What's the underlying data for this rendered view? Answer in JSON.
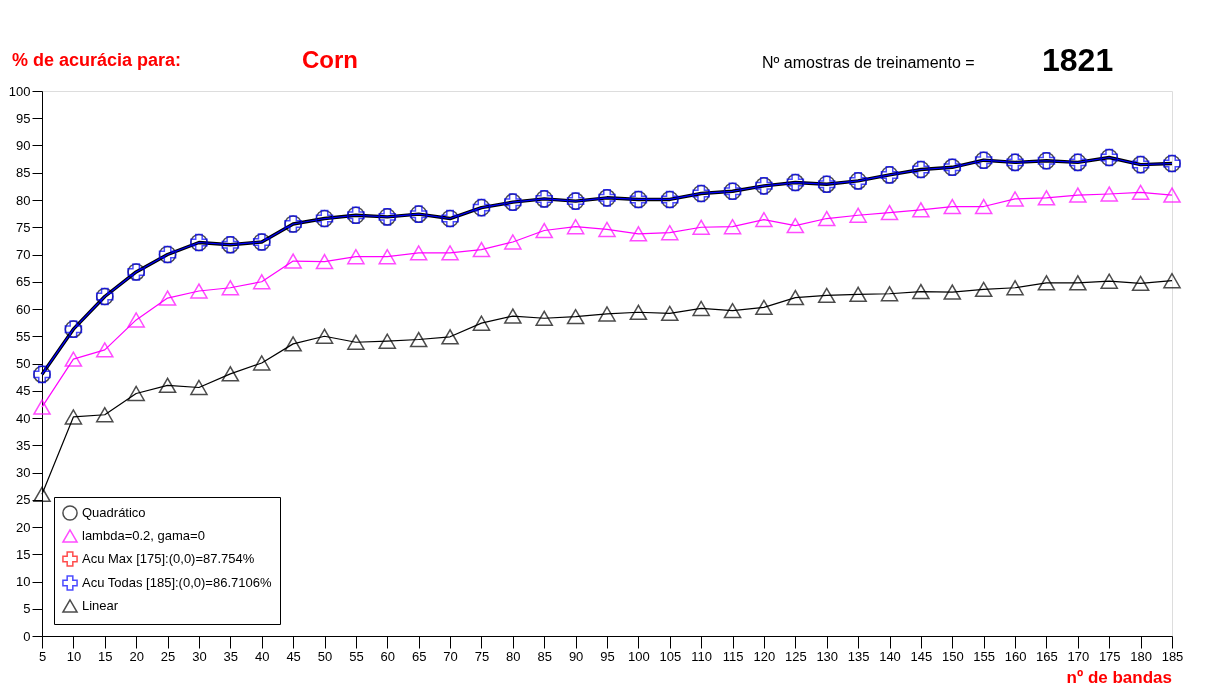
{
  "chart_data": {
    "type": "line",
    "title": "% de acurácia para:",
    "xlabel": "nº de bandas",
    "annotations": [
      "Corn",
      "Nº amostras de treinamento =",
      "1821"
    ],
    "categories": [
      "5",
      "10",
      "15",
      "20",
      "25",
      "30",
      "35",
      "40",
      "45",
      "50",
      "55",
      "60",
      "65",
      "70",
      "75",
      "80",
      "85",
      "90",
      "95",
      "100",
      "105",
      "110",
      "115",
      "120",
      "125",
      "130",
      "135",
      "140",
      "145",
      "150",
      "155",
      "160",
      "165",
      "170",
      "175",
      "180",
      "185"
    ],
    "ylim": [
      0,
      100
    ],
    "yticks": [
      0,
      5,
      10,
      15,
      20,
      25,
      30,
      35,
      40,
      45,
      50,
      55,
      60,
      65,
      70,
      75,
      80,
      85,
      90,
      95,
      100
    ],
    "grid": false,
    "legend": "bottom left",
    "line_style": "solid",
    "series": [
      {
        "name": "Quadrático",
        "color": "#000000",
        "marker": "circle",
        "values": [
          48,
          56.3,
          62.3,
          66.8,
          70,
          72.2,
          71.8,
          72.3,
          75.6,
          76.6,
          77.2,
          76.9,
          77.4,
          76.6,
          78.6,
          79.6,
          80.2,
          79.8,
          80.4,
          80.1,
          80.1,
          81.2,
          81.6,
          82.6,
          83.2,
          82.9,
          83.5,
          84.6,
          85.6,
          86,
          87.3,
          86.9,
          87.2,
          86.9,
          87.8,
          86.5,
          86.7
        ]
      },
      {
        "name": "lambda=0.2, gama=0",
        "color": "#ff00ff",
        "marker": "triangle",
        "values": [
          42,
          50.8,
          52.5,
          58,
          62,
          63.3,
          63.9,
          65,
          68.8,
          68.7,
          69.6,
          69.6,
          70.3,
          70.3,
          70.9,
          72.3,
          74.4,
          75.1,
          74.6,
          73.8,
          74,
          75,
          75.1,
          76.4,
          75.3,
          76.6,
          77.2,
          77.7,
          78.2,
          78.8,
          78.8,
          80.2,
          80.4,
          80.9,
          81.1,
          81.4,
          80.9
        ]
      },
      {
        "name": "Acu Max [175]:(0,0)=87.754%",
        "color": "#ff0000",
        "marker": "cross",
        "values": [
          null,
          null,
          null,
          null,
          null,
          null,
          null,
          null,
          null,
          null,
          null,
          null,
          null,
          null,
          null,
          null,
          null,
          null,
          null,
          null,
          null,
          null,
          null,
          null,
          null,
          null,
          null,
          null,
          null,
          null,
          null,
          null,
          null,
          null,
          null,
          null,
          null
        ]
      },
      {
        "name": "Acu Todas [185]:(0,0)=86.7106%",
        "color": "#0000ff",
        "marker": "cross",
        "values": [
          48,
          56.3,
          62.3,
          66.8,
          70,
          72.2,
          71.8,
          72.3,
          75.6,
          76.6,
          77.2,
          76.9,
          77.4,
          76.6,
          78.6,
          79.6,
          80.2,
          79.8,
          80.4,
          80.1,
          80.1,
          81.2,
          81.6,
          82.6,
          83.2,
          82.9,
          83.5,
          84.6,
          85.6,
          86,
          87.3,
          86.9,
          87.2,
          86.9,
          87.8,
          86.5,
          86.7
        ]
      },
      {
        "name": "Linear",
        "color": "#000000",
        "marker": "triangle",
        "values": [
          26,
          40.2,
          40.6,
          44.5,
          46,
          45.6,
          48.1,
          50.1,
          53.6,
          55,
          53.9,
          54.1,
          54.4,
          54.9,
          57.4,
          58.7,
          58.3,
          58.6,
          59.1,
          59.4,
          59.2,
          60.1,
          59.7,
          60.3,
          62.1,
          62.5,
          62.7,
          62.8,
          63.2,
          63.1,
          63.6,
          63.9,
          64.8,
          64.8,
          65.1,
          64.7,
          65.2
        ]
      }
    ]
  }
}
